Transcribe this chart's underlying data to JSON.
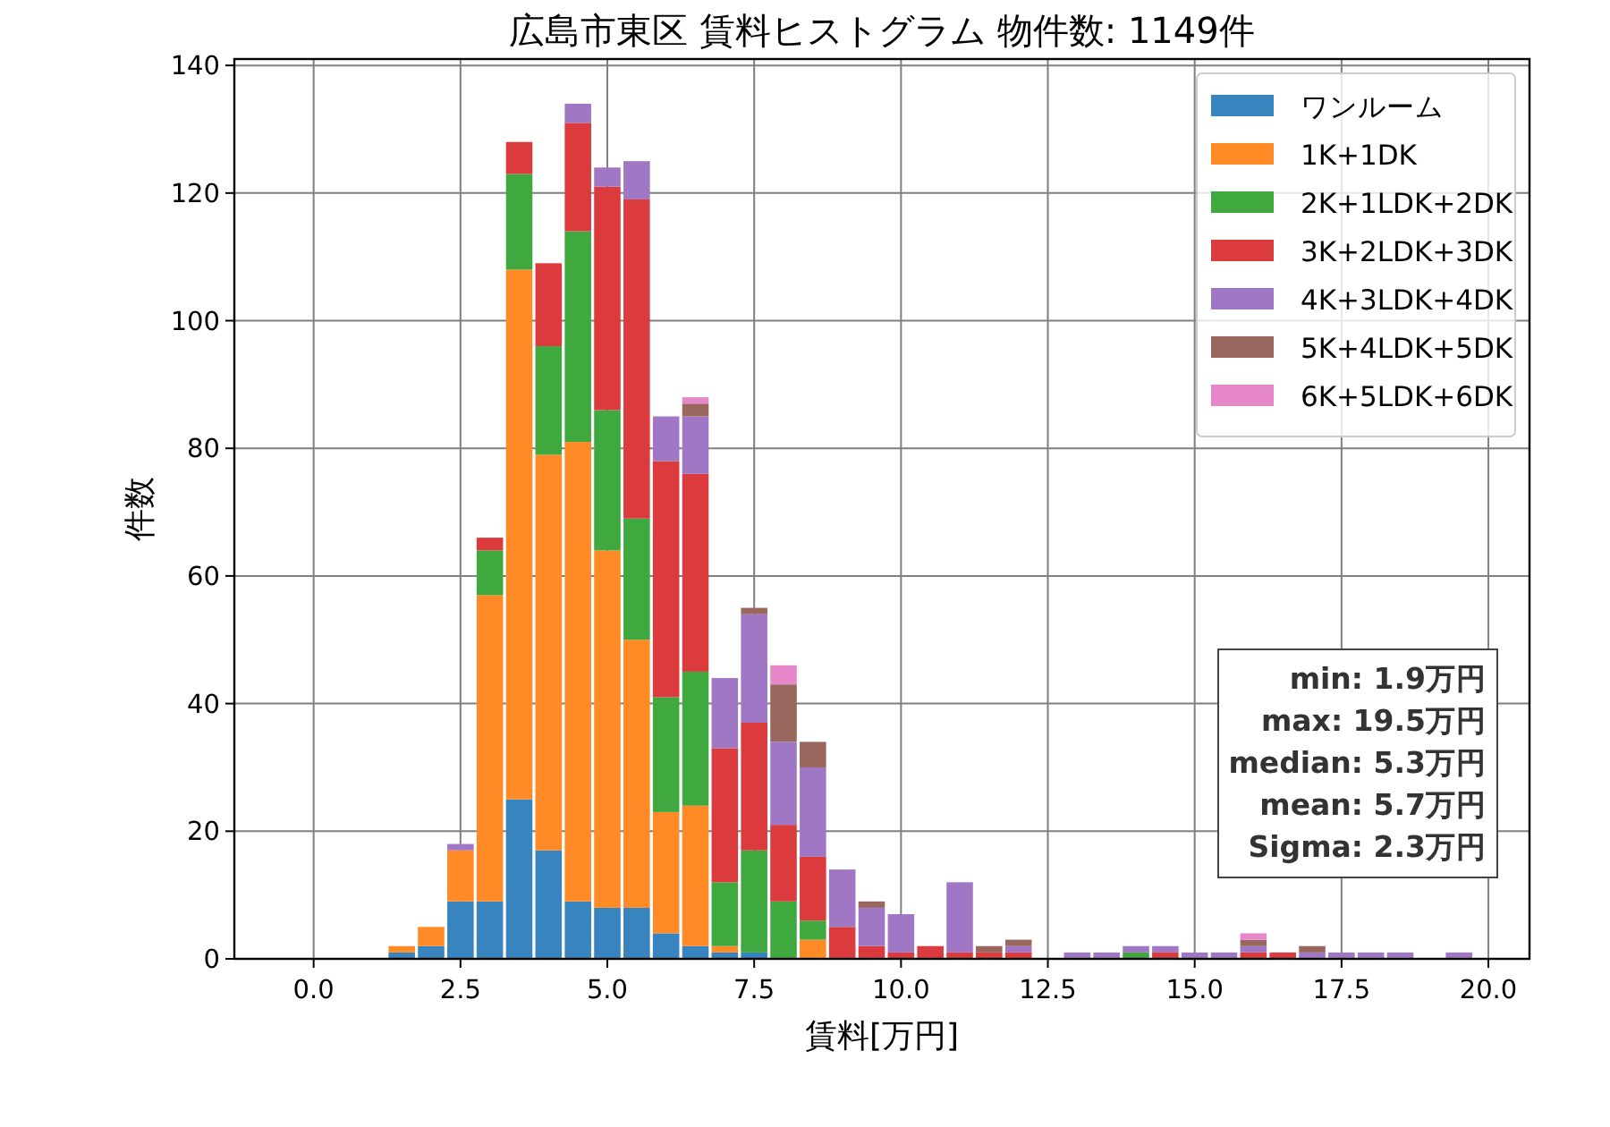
{
  "chart_data": {
    "type": "bar",
    "title": "広島市東区 賃料ヒストグラム  物件数: 1149件",
    "xlabel": "賃料[万円]",
    "ylabel": "件数",
    "x": [
      1.5,
      2.0,
      2.5,
      3.0,
      3.5,
      4.0,
      4.5,
      5.0,
      5.5,
      6.0,
      6.5,
      7.0,
      7.5,
      8.0,
      8.5,
      9.0,
      9.5,
      10.0,
      10.5,
      11.0,
      11.5,
      12.0,
      12.5,
      13.0,
      13.5,
      14.0,
      14.5,
      15.0,
      15.5,
      16.0,
      16.5,
      17.0,
      17.5,
      18.0,
      18.5,
      19.0,
      19.5
    ],
    "stacked": true,
    "series": [
      {
        "name": "ワンルーム",
        "color": "#3784bf",
        "values": [
          1,
          2,
          9,
          9,
          25,
          17,
          9,
          8,
          8,
          4,
          2,
          1,
          1,
          0,
          0,
          0,
          0,
          0,
          0,
          0,
          0,
          0,
          0,
          0,
          0,
          0,
          0,
          0,
          0,
          0,
          0,
          0,
          0,
          0,
          0,
          0,
          0
        ]
      },
      {
        "name": "1K+1DK",
        "color": "#ff8a26",
        "values": [
          1,
          3,
          8,
          48,
          83,
          62,
          72,
          56,
          42,
          19,
          22,
          1,
          0,
          0,
          3,
          0,
          0,
          0,
          0,
          0,
          0,
          0,
          0,
          0,
          0,
          0,
          0,
          0,
          0,
          0,
          0,
          0,
          0,
          0,
          0,
          0,
          0
        ]
      },
      {
        "name": "2K+1LDK+2DK",
        "color": "#3fa93f",
        "values": [
          0,
          0,
          0,
          7,
          15,
          17,
          33,
          22,
          19,
          18,
          21,
          10,
          16,
          9,
          3,
          0,
          0,
          0,
          0,
          0,
          0,
          0,
          0,
          0,
          0,
          1,
          0,
          0,
          0,
          0,
          0,
          0,
          0,
          0,
          0,
          0,
          0
        ]
      },
      {
        "name": "3K+2LDK+3DK",
        "color": "#db3b3d",
        "values": [
          0,
          0,
          0,
          2,
          5,
          13,
          17,
          35,
          50,
          37,
          31,
          21,
          20,
          12,
          10,
          5,
          2,
          1,
          2,
          1,
          1,
          1,
          0,
          0,
          0,
          0,
          1,
          0,
          0,
          1,
          1,
          0,
          0,
          0,
          0,
          0,
          0
        ]
      },
      {
        "name": "4K+3LDK+4DK",
        "color": "#a077c5",
        "values": [
          0,
          0,
          1,
          0,
          0,
          0,
          3,
          3,
          6,
          7,
          9,
          11,
          17,
          13,
          14,
          9,
          6,
          6,
          0,
          11,
          0,
          1,
          0,
          1,
          1,
          1,
          1,
          1,
          1,
          1,
          0,
          1,
          1,
          1,
          1,
          0,
          1
        ]
      },
      {
        "name": "5K+4LDK+5DK",
        "color": "#9a675e",
        "values": [
          0,
          0,
          0,
          0,
          0,
          0,
          0,
          0,
          0,
          0,
          2,
          0,
          1,
          9,
          4,
          0,
          1,
          0,
          0,
          0,
          1,
          1,
          0,
          0,
          0,
          0,
          0,
          0,
          0,
          1,
          0,
          1,
          0,
          0,
          0,
          0,
          0
        ]
      },
      {
        "name": "6K+5LDK+6DK",
        "color": "#e687c9",
        "values": [
          0,
          0,
          0,
          0,
          0,
          0,
          0,
          0,
          0,
          0,
          1,
          0,
          0,
          3,
          0,
          0,
          0,
          0,
          0,
          0,
          0,
          0,
          0,
          0,
          0,
          0,
          0,
          0,
          0,
          1,
          0,
          0,
          0,
          0,
          0,
          0,
          0
        ]
      }
    ],
    "xlim": [
      -1.35,
      20.7
    ],
    "ylim": [
      0,
      141
    ],
    "xticks": [
      {
        "value": 0,
        "label": "0.0"
      },
      2.5,
      {
        "value": 5,
        "label": "5.0"
      },
      7.5,
      {
        "value": 10,
        "label": "10.0"
      },
      12.5,
      {
        "value": 15,
        "label": "15.0"
      },
      17.5,
      {
        "value": 20,
        "label": "20.0"
      }
    ],
    "yticks": [
      0,
      20,
      40,
      60,
      80,
      100,
      120,
      140
    ],
    "grid": true,
    "legend": "top right",
    "annotations": [
      "min: 1.9万円",
      "max: 19.5万円",
      "median: 5.3万円",
      "mean: 5.7万円",
      "Sigma: 2.3万円"
    ]
  }
}
